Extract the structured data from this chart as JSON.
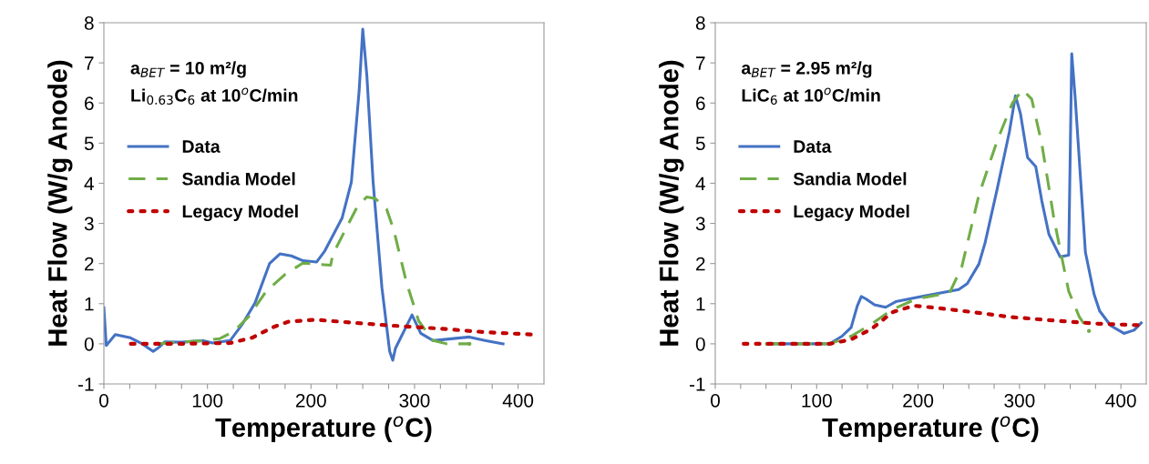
{
  "chart_data": [
    {
      "type": "line",
      "xlabel": "Temperature ($^{o}$C)",
      "ylabel": "Heat Flow (W/g Anode)",
      "annotations": [
        "a$_{BET}$ = 10 m²/g",
        "Li$_{0.63}$C$_{6}$ at 10$^{o}$C/min"
      ],
      "legend": "top left",
      "xlim": [
        0,
        425
      ],
      "ylim": [
        -1,
        8
      ],
      "xticks": [
        0,
        {
          "value": 25,
          "label": null
        },
        {
          "value": 50,
          "label": null
        },
        {
          "value": 75,
          "label": null
        },
        100,
        {
          "value": 125,
          "label": null
        },
        {
          "value": 150,
          "label": null
        },
        {
          "value": 175,
          "label": null
        },
        200,
        {
          "value": 225,
          "label": null
        },
        {
          "value": 250,
          "label": null
        },
        {
          "value": 275,
          "label": null
        },
        300,
        {
          "value": 325,
          "label": null
        },
        {
          "value": 350,
          "label": null
        },
        {
          "value": 375,
          "label": null
        },
        400
      ],
      "yticks": [
        -1,
        0,
        1,
        2,
        3,
        4,
        5,
        6,
        7,
        8
      ],
      "series": [
        {
          "name": "Data",
          "color": "#4472c4",
          "line_style": "solid",
          "x": [
            0,
            2.3,
            11,
            25.7,
            37,
            47.6,
            53.5,
            59,
            75,
            96,
            105,
            122,
            134,
            146,
            160,
            170,
            181,
            192.4,
            205.5,
            213,
            230,
            239,
            246.5,
            250,
            254,
            260,
            268.5,
            276,
            279,
            281.6,
            297.6,
            306,
            318,
            353,
            368,
            385.5
          ],
          "values": [
            0.9,
            -0.04,
            0.23,
            0.15,
            0,
            -0.19,
            -0.08,
            0.05,
            0.04,
            0.08,
            0.02,
            0.08,
            0.5,
            1.02,
            2.0,
            2.24,
            2.19,
            2.07,
            2.04,
            2.3,
            3.13,
            4.03,
            6.3,
            7.84,
            6.67,
            4.03,
            1.4,
            -0.19,
            -0.41,
            -0.11,
            0.72,
            0.26,
            0.08,
            0.17,
            0.08,
            0
          ]
        },
        {
          "name": "Sandia Model",
          "color": "#70ad47",
          "line_style": "dashed",
          "x": [
            52,
            96,
            112,
            125,
            140,
            157,
            175,
            192,
            219,
            221,
            233,
            245,
            254,
            262,
            273,
            280,
            292,
            304,
            318,
            331,
            353
          ],
          "values": [
            0,
            0.08,
            0.13,
            0.3,
            0.68,
            1.32,
            1.73,
            2.01,
            1.96,
            2.22,
            2.83,
            3.43,
            3.66,
            3.62,
            3.36,
            2.83,
            1.55,
            0.57,
            0.08,
            0,
            0
          ]
        },
        {
          "name": "Legacy Model",
          "color": "#c00000",
          "line_style": "dotted",
          "x": [
            26,
            75,
            122,
            143,
            163,
            178,
            204,
            239,
            280,
            324,
            368,
            415
          ],
          "values": [
            0,
            0,
            0.02,
            0.15,
            0.41,
            0.55,
            0.6,
            0.53,
            0.45,
            0.38,
            0.29,
            0.23
          ]
        }
      ]
    },
    {
      "type": "line",
      "xlabel": "Temperature ($^{o}$C)",
      "ylabel": "Heat Flow (W/g Anode)",
      "annotations": [
        "a$_{BET}$ = 2.95 m²/g",
        "LiC$_{6}$ at 10$^{o}$C/min"
      ],
      "legend": "top left",
      "xlim": [
        0,
        425
      ],
      "ylim": [
        -1,
        8
      ],
      "xticks": [
        0,
        {
          "value": 25,
          "label": null
        },
        {
          "value": 50,
          "label": null
        },
        {
          "value": 75,
          "label": null
        },
        100,
        {
          "value": 125,
          "label": null
        },
        {
          "value": 150,
          "label": null
        },
        {
          "value": 175,
          "label": null
        },
        200,
        {
          "value": 225,
          "label": null
        },
        {
          "value": 250,
          "label": null
        },
        {
          "value": 275,
          "label": null
        },
        300,
        {
          "value": 325,
          "label": null
        },
        {
          "value": 350,
          "label": null
        },
        {
          "value": 375,
          "label": null
        },
        400
      ],
      "yticks": [
        -1,
        0,
        1,
        2,
        3,
        4,
        5,
        6,
        7,
        8
      ],
      "series": [
        {
          "name": "Data",
          "color": "#4472c4",
          "line_style": "solid",
          "x": [
            51,
            113,
            125,
            134,
            140,
            144,
            148.5,
            157,
            168,
            178,
            196,
            216,
            240,
            248.5,
            260,
            266,
            278,
            290,
            296,
            301,
            308,
            316,
            322,
            329,
            340,
            348.5,
            351.5,
            355,
            365,
            373.5,
            379,
            390,
            403,
            413,
            420
          ],
          "values": [
            0,
            0,
            0.19,
            0.41,
            0.94,
            1.18,
            1.12,
            0.97,
            0.91,
            1.05,
            1.14,
            1.24,
            1.35,
            1.5,
            1.99,
            2.51,
            3.86,
            5.28,
            6.18,
            5.73,
            4.64,
            4.42,
            3.56,
            2.73,
            2.17,
            2.21,
            7.23,
            6.1,
            2.28,
            1.24,
            0.82,
            0.45,
            0.26,
            0.34,
            0.52
          ]
        },
        {
          "name": "Sandia Model",
          "color": "#70ad47",
          "line_style": "dashed",
          "x": [
            51,
            113,
            134,
            154,
            175,
            198.5,
            231,
            243,
            260,
            278,
            293,
            303,
            312,
            322,
            334,
            348.5,
            359,
            368.5
          ],
          "values": [
            0,
            0,
            0.19,
            0.49,
            0.86,
            1.12,
            1.27,
            1.91,
            3.71,
            5.06,
            6.0,
            6.33,
            6.1,
            4.98,
            3.11,
            1.31,
            0.67,
            0.32
          ]
        },
        {
          "name": "Legacy Model",
          "color": "#c00000",
          "line_style": "dotted",
          "x": [
            28,
            113,
            134,
            154,
            175,
            195.6,
            216,
            254,
            290,
            334,
            378,
            420
          ],
          "values": [
            0,
            0,
            0.11,
            0.37,
            0.79,
            0.95,
            0.9,
            0.79,
            0.67,
            0.58,
            0.5,
            0.46
          ]
        }
      ]
    }
  ]
}
